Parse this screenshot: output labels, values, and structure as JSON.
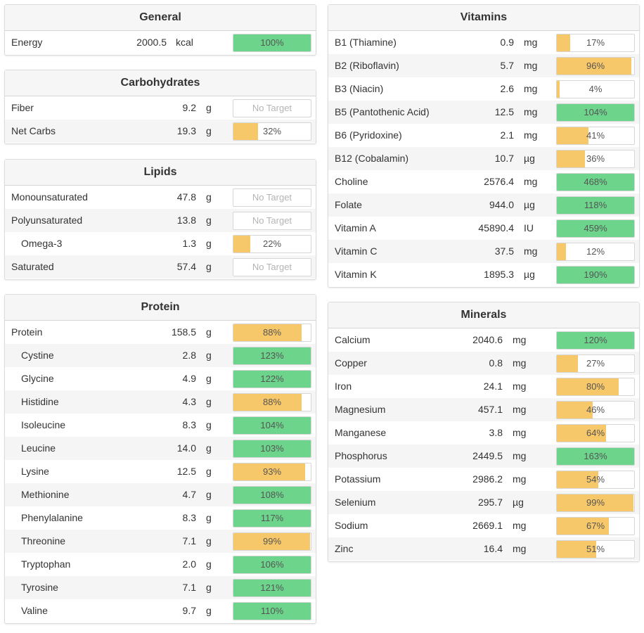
{
  "colors": {
    "green": "#6cd48b",
    "yellow": "#f7c869"
  },
  "general": {
    "title": "General",
    "rows": [
      {
        "name": "Energy",
        "amount": "2000.5",
        "unit": "kcal",
        "pct": "100%",
        "fill": 100,
        "color": "green"
      }
    ]
  },
  "carbs": {
    "title": "Carbohydrates",
    "rows": [
      {
        "name": "Fiber",
        "amount": "9.2",
        "unit": "g",
        "pct": "No Target",
        "fill": 0,
        "color": "none"
      },
      {
        "name": "Net Carbs",
        "amount": "19.3",
        "unit": "g",
        "pct": "32%",
        "fill": 32,
        "color": "yellow"
      }
    ]
  },
  "lipids": {
    "title": "Lipids",
    "rows": [
      {
        "name": "Monounsaturated",
        "amount": "47.8",
        "unit": "g",
        "pct": "No Target",
        "fill": 0,
        "color": "none"
      },
      {
        "name": "Polyunsaturated",
        "amount": "13.8",
        "unit": "g",
        "pct": "No Target",
        "fill": 0,
        "color": "none"
      },
      {
        "name": "Omega-3",
        "amount": "1.3",
        "unit": "g",
        "pct": "22%",
        "fill": 22,
        "color": "yellow",
        "indent": true
      },
      {
        "name": "Saturated",
        "amount": "57.4",
        "unit": "g",
        "pct": "No Target",
        "fill": 0,
        "color": "none"
      }
    ]
  },
  "protein": {
    "title": "Protein",
    "rows": [
      {
        "name": "Protein",
        "amount": "158.5",
        "unit": "g",
        "pct": "88%",
        "fill": 88,
        "color": "yellow"
      },
      {
        "name": "Cystine",
        "amount": "2.8",
        "unit": "g",
        "pct": "123%",
        "fill": 100,
        "color": "green",
        "indent": true
      },
      {
        "name": "Glycine",
        "amount": "4.9",
        "unit": "g",
        "pct": "122%",
        "fill": 100,
        "color": "green",
        "indent": true
      },
      {
        "name": "Histidine",
        "amount": "4.3",
        "unit": "g",
        "pct": "88%",
        "fill": 88,
        "color": "yellow",
        "indent": true
      },
      {
        "name": "Isoleucine",
        "amount": "8.3",
        "unit": "g",
        "pct": "104%",
        "fill": 100,
        "color": "green",
        "indent": true
      },
      {
        "name": "Leucine",
        "amount": "14.0",
        "unit": "g",
        "pct": "103%",
        "fill": 100,
        "color": "green",
        "indent": true
      },
      {
        "name": "Lysine",
        "amount": "12.5",
        "unit": "g",
        "pct": "93%",
        "fill": 93,
        "color": "yellow",
        "indent": true
      },
      {
        "name": "Methionine",
        "amount": "4.7",
        "unit": "g",
        "pct": "108%",
        "fill": 100,
        "color": "green",
        "indent": true
      },
      {
        "name": "Phenylalanine",
        "amount": "8.3",
        "unit": "g",
        "pct": "117%",
        "fill": 100,
        "color": "green",
        "indent": true
      },
      {
        "name": "Threonine",
        "amount": "7.1",
        "unit": "g",
        "pct": "99%",
        "fill": 99,
        "color": "yellow",
        "indent": true
      },
      {
        "name": "Tryptophan",
        "amount": "2.0",
        "unit": "g",
        "pct": "106%",
        "fill": 100,
        "color": "green",
        "indent": true
      },
      {
        "name": "Tyrosine",
        "amount": "7.1",
        "unit": "g",
        "pct": "121%",
        "fill": 100,
        "color": "green",
        "indent": true
      },
      {
        "name": "Valine",
        "amount": "9.7",
        "unit": "g",
        "pct": "110%",
        "fill": 100,
        "color": "green",
        "indent": true
      }
    ]
  },
  "vitamins": {
    "title": "Vitamins",
    "rows": [
      {
        "name": "B1 (Thiamine)",
        "amount": "0.9",
        "unit": "mg",
        "pct": "17%",
        "fill": 17,
        "color": "yellow"
      },
      {
        "name": "B2 (Riboflavin)",
        "amount": "5.7",
        "unit": "mg",
        "pct": "96%",
        "fill": 96,
        "color": "yellow"
      },
      {
        "name": "B3 (Niacin)",
        "amount": "2.6",
        "unit": "mg",
        "pct": "4%",
        "fill": 4,
        "color": "yellow"
      },
      {
        "name": "B5 (Pantothenic Acid)",
        "amount": "12.5",
        "unit": "mg",
        "pct": "104%",
        "fill": 100,
        "color": "green"
      },
      {
        "name": "B6 (Pyridoxine)",
        "amount": "2.1",
        "unit": "mg",
        "pct": "41%",
        "fill": 41,
        "color": "yellow"
      },
      {
        "name": "B12 (Cobalamin)",
        "amount": "10.7",
        "unit": "µg",
        "pct": "36%",
        "fill": 36,
        "color": "yellow"
      },
      {
        "name": "Choline",
        "amount": "2576.4",
        "unit": "mg",
        "pct": "468%",
        "fill": 100,
        "color": "green"
      },
      {
        "name": "Folate",
        "amount": "944.0",
        "unit": "µg",
        "pct": "118%",
        "fill": 100,
        "color": "green"
      },
      {
        "name": "Vitamin A",
        "amount": "45890.4",
        "unit": "IU",
        "pct": "459%",
        "fill": 100,
        "color": "green"
      },
      {
        "name": "Vitamin C",
        "amount": "37.5",
        "unit": "mg",
        "pct": "12%",
        "fill": 12,
        "color": "yellow"
      },
      {
        "name": "Vitamin K",
        "amount": "1895.3",
        "unit": "µg",
        "pct": "190%",
        "fill": 100,
        "color": "green"
      }
    ]
  },
  "minerals": {
    "title": "Minerals",
    "rows": [
      {
        "name": "Calcium",
        "amount": "2040.6",
        "unit": "mg",
        "pct": "120%",
        "fill": 100,
        "color": "green"
      },
      {
        "name": "Copper",
        "amount": "0.8",
        "unit": "mg",
        "pct": "27%",
        "fill": 27,
        "color": "yellow"
      },
      {
        "name": "Iron",
        "amount": "24.1",
        "unit": "mg",
        "pct": "80%",
        "fill": 80,
        "color": "yellow"
      },
      {
        "name": "Magnesium",
        "amount": "457.1",
        "unit": "mg",
        "pct": "46%",
        "fill": 46,
        "color": "yellow"
      },
      {
        "name": "Manganese",
        "amount": "3.8",
        "unit": "mg",
        "pct": "64%",
        "fill": 64,
        "color": "yellow"
      },
      {
        "name": "Phosphorus",
        "amount": "2449.5",
        "unit": "mg",
        "pct": "163%",
        "fill": 100,
        "color": "green"
      },
      {
        "name": "Potassium",
        "amount": "2986.2",
        "unit": "mg",
        "pct": "54%",
        "fill": 54,
        "color": "yellow"
      },
      {
        "name": "Selenium",
        "amount": "295.7",
        "unit": "µg",
        "pct": "99%",
        "fill": 99,
        "color": "yellow"
      },
      {
        "name": "Sodium",
        "amount": "2669.1",
        "unit": "mg",
        "pct": "67%",
        "fill": 67,
        "color": "yellow"
      },
      {
        "name": "Zinc",
        "amount": "16.4",
        "unit": "mg",
        "pct": "51%",
        "fill": 51,
        "color": "yellow"
      }
    ]
  }
}
